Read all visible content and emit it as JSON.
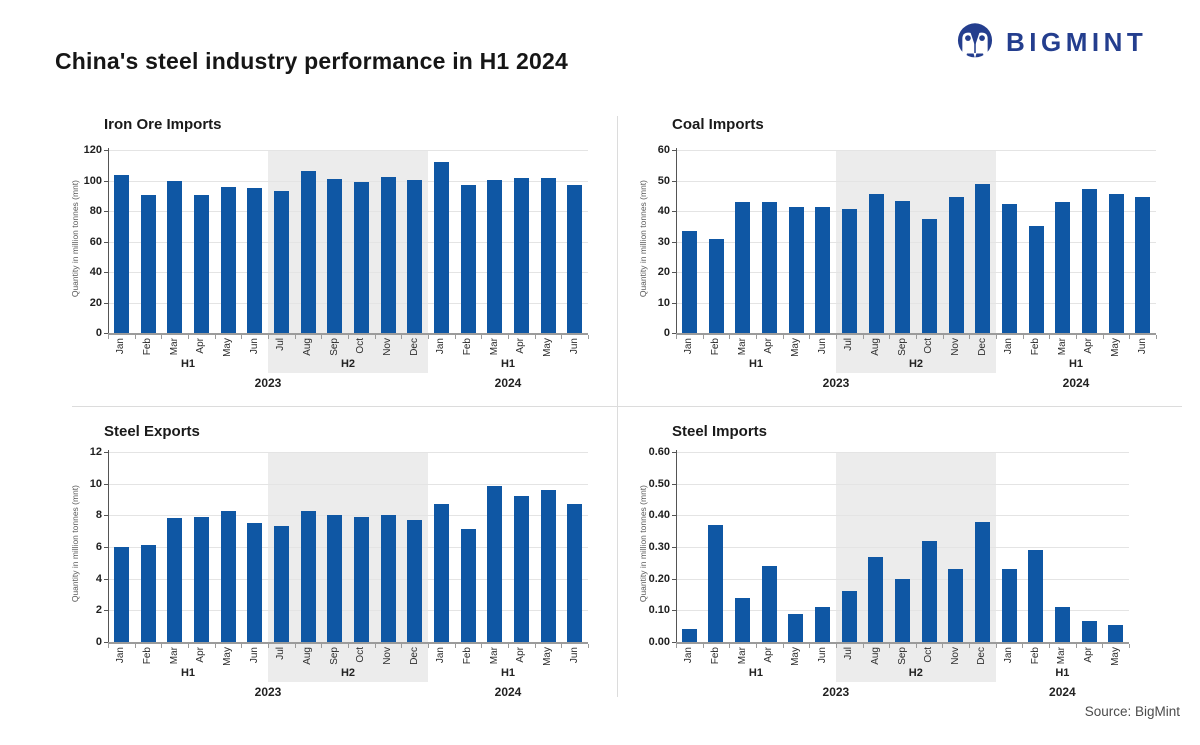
{
  "page": {
    "title": "China's steel industry performance in H1 2024",
    "brand": "BIGMINT",
    "source": "Source: BigMint"
  },
  "colors": {
    "bar_blue": "#0F57A4",
    "shaded_band": "#ECECEC",
    "brand_navy": "#243E8E"
  },
  "chart_data": [
    {
      "type": "bar",
      "title": "Iron Ore Imports",
      "ylabel": "Quantity in million tonnes (mnt)",
      "ylim": [
        0,
        120
      ],
      "ystep": 20,
      "tick_decimals": 0,
      "grid": true,
      "months": [
        "Jan",
        "Feb",
        "Mar",
        "Apr",
        "May",
        "Jun",
        "Jul",
        "Aug",
        "Sep",
        "Oct",
        "Nov",
        "Dec",
        "Jan",
        "Feb",
        "Mar",
        "Apr",
        "May",
        "Jun"
      ],
      "values": [
        103.5,
        90.3,
        100.0,
        90.4,
        96.0,
        95.3,
        93.3,
        106.2,
        100.9,
        99.1,
        102.5,
        100.6,
        112.0,
        97.3,
        100.4,
        101.5,
        101.9,
        97.3
      ],
      "groups": [
        {
          "label": "H1",
          "start": 0,
          "end": 5,
          "shaded": false
        },
        {
          "label": "H2",
          "start": 6,
          "end": 11,
          "shaded": true
        },
        {
          "label": "H1",
          "start": 12,
          "end": 17,
          "shaded": false
        }
      ],
      "years": [
        {
          "label": "2023",
          "start": 0,
          "end": 11
        },
        {
          "label": "2024",
          "start": 12,
          "end": 17
        }
      ]
    },
    {
      "type": "bar",
      "title": "Coal Imports",
      "ylabel": "Quantity in million tonnes (mnt)",
      "ylim": [
        0,
        60
      ],
      "ystep": 10,
      "tick_decimals": 0,
      "grid": true,
      "months": [
        "Jan",
        "Feb",
        "Mar",
        "Apr",
        "May",
        "Jun",
        "Jul",
        "Aug",
        "Sep",
        "Oct",
        "Nov",
        "Dec",
        "Jan",
        "Feb",
        "Mar",
        "Apr",
        "May",
        "Jun"
      ],
      "values": [
        33.4,
        30.9,
        43.1,
        42.9,
        41.3,
        41.4,
        40.5,
        45.5,
        43.3,
        37.3,
        44.7,
        48.8,
        42.3,
        35.2,
        42.8,
        47.1,
        45.7,
        44.6
      ],
      "groups": [
        {
          "label": "H1",
          "start": 0,
          "end": 5,
          "shaded": false
        },
        {
          "label": "H2",
          "start": 6,
          "end": 11,
          "shaded": true
        },
        {
          "label": "H1",
          "start": 12,
          "end": 17,
          "shaded": false
        }
      ],
      "years": [
        {
          "label": "2023",
          "start": 0,
          "end": 11
        },
        {
          "label": "2024",
          "start": 12,
          "end": 17
        }
      ]
    },
    {
      "type": "bar",
      "title": "Steel Exports",
      "ylabel": "Quantity in million tonnes (mnt)",
      "ylim": [
        0,
        12
      ],
      "ystep": 2,
      "tick_decimals": 0,
      "grid": true,
      "months": [
        "Jan",
        "Feb",
        "Mar",
        "Apr",
        "May",
        "Jun",
        "Jul",
        "Aug",
        "Sep",
        "Oct",
        "Nov",
        "Dec",
        "Jan",
        "Feb",
        "Mar",
        "Apr",
        "May",
        "Jun"
      ],
      "values": [
        6.0,
        6.15,
        7.85,
        7.9,
        8.3,
        7.5,
        7.3,
        8.25,
        8.0,
        7.9,
        8.0,
        7.7,
        8.7,
        7.15,
        9.85,
        9.2,
        9.6,
        8.7
      ],
      "groups": [
        {
          "label": "H1",
          "start": 0,
          "end": 5,
          "shaded": false
        },
        {
          "label": "H2",
          "start": 6,
          "end": 11,
          "shaded": true
        },
        {
          "label": "H1",
          "start": 12,
          "end": 17,
          "shaded": false
        }
      ],
      "years": [
        {
          "label": "2023",
          "start": 0,
          "end": 11
        },
        {
          "label": "2024",
          "start": 12,
          "end": 17
        }
      ]
    },
    {
      "type": "bar",
      "title": "Steel Imports",
      "ylabel": "Quantity in million tonnes (mnt)",
      "ylim": [
        0,
        0.6
      ],
      "ystep": 0.1,
      "tick_decimals": 2,
      "grid": true,
      "months": [
        "Jan",
        "Feb",
        "Mar",
        "Apr",
        "May",
        "Jun",
        "Jul",
        "Aug",
        "Sep",
        "Oct",
        "Nov",
        "Dec",
        "Jan",
        "Feb",
        "Mar",
        "Apr",
        "May"
      ],
      "values": [
        0.04,
        0.37,
        0.14,
        0.24,
        0.09,
        0.11,
        0.16,
        0.27,
        0.2,
        0.32,
        0.23,
        0.38,
        0.23,
        0.29,
        0.11,
        0.065,
        0.055
      ],
      "groups": [
        {
          "label": "H1",
          "start": 0,
          "end": 5,
          "shaded": false
        },
        {
          "label": "H2",
          "start": 6,
          "end": 11,
          "shaded": true
        },
        {
          "label": "H1",
          "start": 12,
          "end": 16,
          "shaded": false
        }
      ],
      "years": [
        {
          "label": "2023",
          "start": 0,
          "end": 11
        },
        {
          "label": "2024",
          "start": 12,
          "end": 16
        }
      ]
    }
  ]
}
